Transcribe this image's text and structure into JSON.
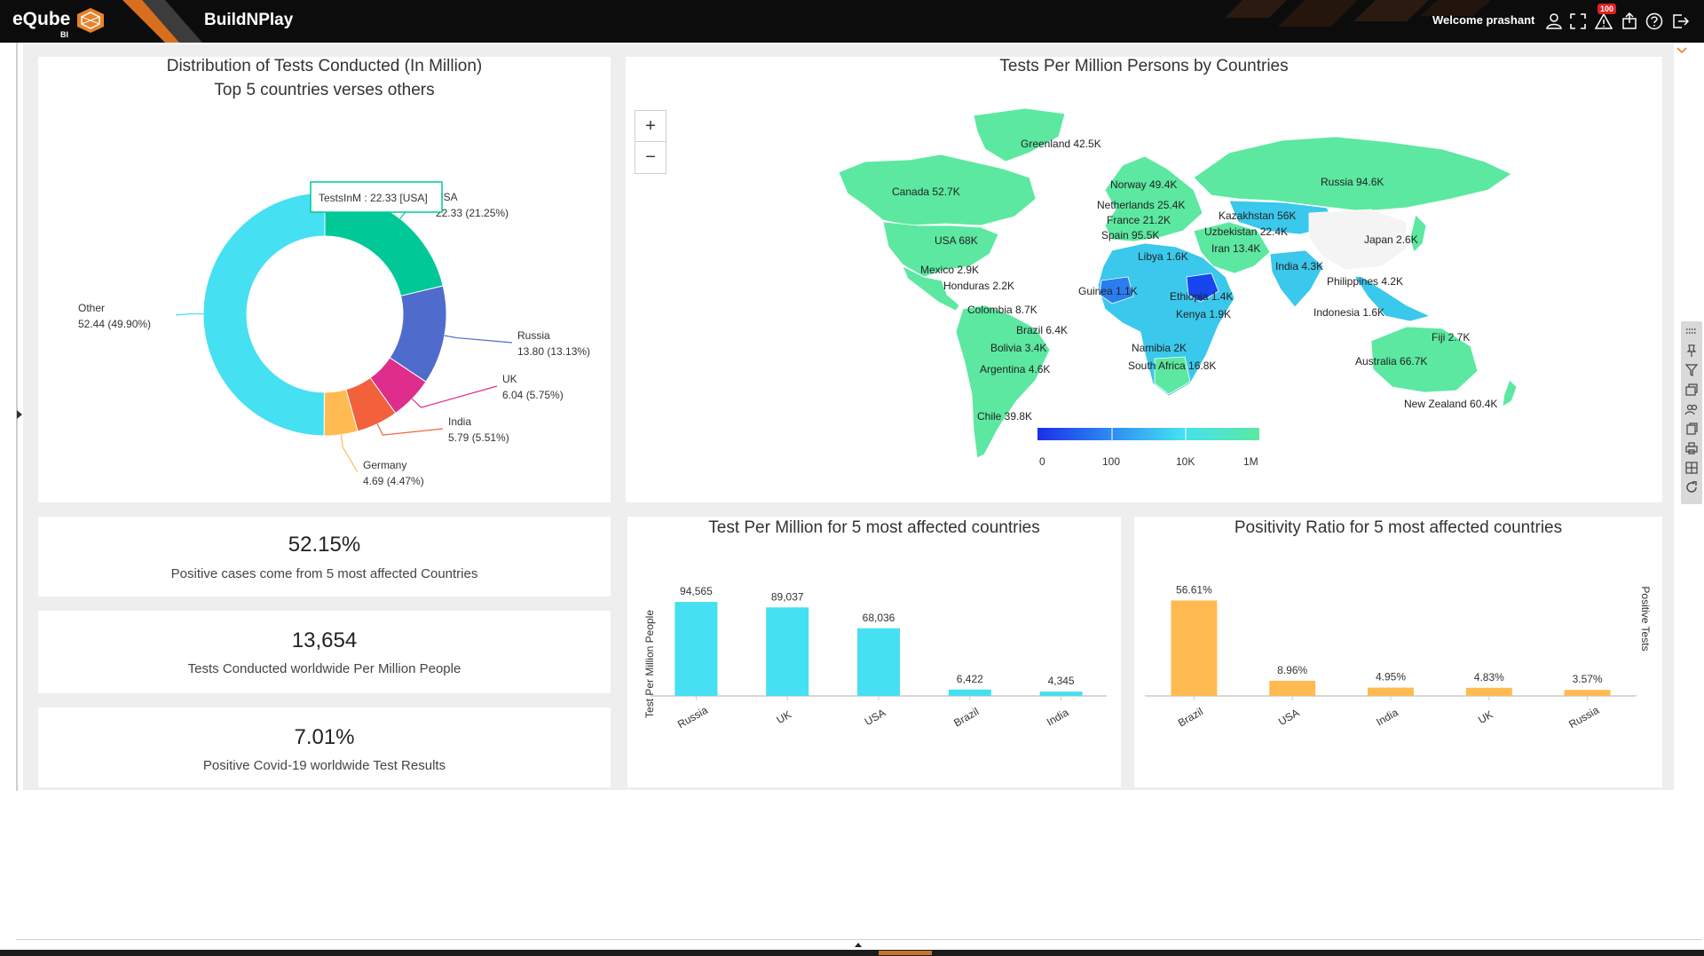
{
  "app": {
    "logo": "eQube",
    "logo_sub": "BI",
    "title": "BuildNPlay",
    "welcome": "Welcome prashant",
    "notification_count": "100"
  },
  "colors": {
    "topbar": "#0c0c0c",
    "cyan": "#45e0f2",
    "green": "#00c896",
    "blue": "#4f6bcc",
    "magenta": "#de2d8a",
    "orange": "#f2613c",
    "yellow": "#ffbb52",
    "map_green": "#5ce8a0",
    "map_cyan": "#3ac8ec",
    "map_blue": "#1745f0"
  },
  "top_icons": [
    "user-icon",
    "fullscreen-icon",
    "alert-icon",
    "share-icon",
    "help-icon",
    "logout-icon"
  ],
  "donut": {
    "title_line1": "Distribution of Tests Conducted (In Million)",
    "title_line2": "Top 5 countries verses others",
    "tooltip": "TestsInM : 22.33 [USA]",
    "slices": [
      {
        "name": "USA",
        "value": 22.33,
        "label": "22.33 (21.25%)",
        "color": "#00c896"
      },
      {
        "name": "Russia",
        "value": 13.8,
        "label": "13.80 (13.13%)",
        "color": "#4f6bcc"
      },
      {
        "name": "UK",
        "value": 6.04,
        "label": "6.04 (5.75%)",
        "color": "#de2d8a"
      },
      {
        "name": "India",
        "value": 5.79,
        "label": "5.79 (5.51%)",
        "color": "#f2613c"
      },
      {
        "name": "Germany",
        "value": 4.69,
        "label": "4.69 (4.47%)",
        "color": "#ffbb52"
      },
      {
        "name": "Other",
        "value": 52.44,
        "label": "52.44 (49.90%)",
        "color": "#45e0f2"
      }
    ]
  },
  "map": {
    "title": "Tests Per Million Persons by Countries",
    "zoom_in": "+",
    "zoom_out": "−",
    "legend": [
      "0",
      "100",
      "10K",
      "1M"
    ],
    "labels": [
      {
        "text": "Greenland 42.5K"
      },
      {
        "text": "Canada 52.7K"
      },
      {
        "text": "USA 68K"
      },
      {
        "text": "Mexico 2.9K"
      },
      {
        "text": "Honduras 2.2K"
      },
      {
        "text": "Colombia 8.7K"
      },
      {
        "text": "Brazil 6.4K"
      },
      {
        "text": "Bolivia 3.4K"
      },
      {
        "text": "Argentina 4.6K"
      },
      {
        "text": "Chile 39.8K"
      },
      {
        "text": "Norway 49.4K"
      },
      {
        "text": "Netherlands 25.4K"
      },
      {
        "text": "France 21.2K"
      },
      {
        "text": "Spain 95.5K"
      },
      {
        "text": "Libya 1.6K"
      },
      {
        "text": "Guinea 1.1K"
      },
      {
        "text": "Ethiopia 1.4K"
      },
      {
        "text": "Kenya 1.9K"
      },
      {
        "text": "Namibia 2K"
      },
      {
        "text": "South Africa 16.8K"
      },
      {
        "text": "Kazakhstan 56K"
      },
      {
        "text": "Uzbekistan 22.4K"
      },
      {
        "text": "Iran 13.4K"
      },
      {
        "text": "India 4.3K"
      },
      {
        "text": "Russia 94.6K"
      },
      {
        "text": "Japan 2.6K"
      },
      {
        "text": "Philippines 4.2K"
      },
      {
        "text": "Indonesia 1.6K"
      },
      {
        "text": "Australia 66.7K"
      },
      {
        "text": "Fiji 2.7K"
      },
      {
        "text": "New Zealand 60.4K"
      }
    ]
  },
  "kpis": [
    {
      "value": "52.15%",
      "label": "Positive cases come from 5 most affected Countries"
    },
    {
      "value": "13,654",
      "label": "Tests Conducted worldwide Per Million People"
    },
    {
      "value": "7.01%",
      "label": "Positive Covid-19 worldwide Test Results"
    }
  ],
  "chart_data": [
    {
      "type": "bar",
      "title": "Test Per Million for 5 most affected countries",
      "ylabel": "Test Per Million People",
      "categories": [
        "Russia",
        "UK",
        "USA",
        "Brazil",
        "India"
      ],
      "values": [
        94565,
        89037,
        68036,
        6422,
        4345
      ],
      "value_labels": [
        "94,565",
        "89,037",
        "68,036",
        "6,422",
        "4,345"
      ],
      "ylim": [
        0,
        100000
      ],
      "color": "#45e0f2"
    },
    {
      "type": "bar",
      "title": "Positivity Ratio for 5 most affected countries",
      "ylabel": "Positive Tests",
      "categories": [
        "Brazil",
        "USA",
        "India",
        "UK",
        "Russia"
      ],
      "values": [
        56.61,
        8.96,
        4.95,
        4.83,
        3.57
      ],
      "value_labels": [
        "56.61%",
        "8.96%",
        "4.95%",
        "4.83%",
        "3.57%"
      ],
      "ylim": [
        0,
        60
      ],
      "color": "#ffbb52"
    }
  ]
}
